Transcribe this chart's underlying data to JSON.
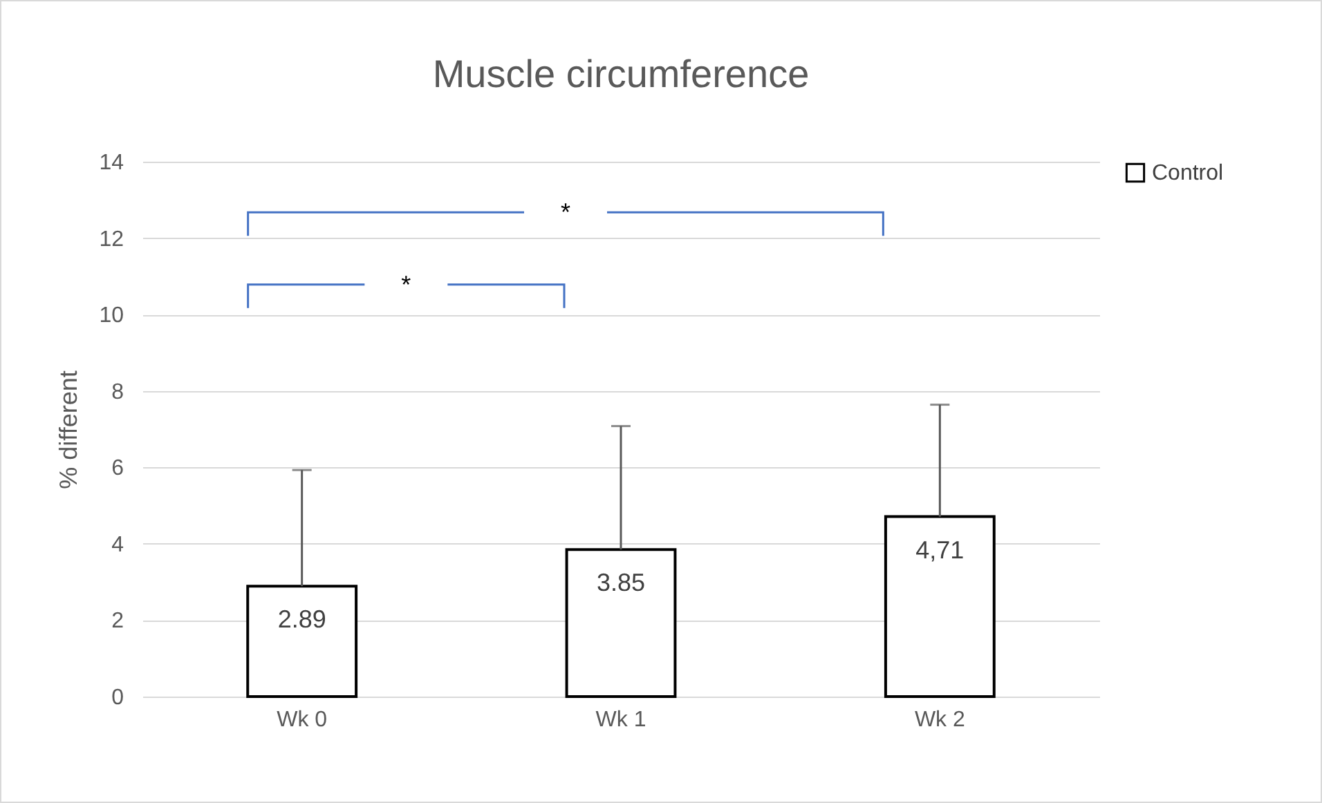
{
  "chart_data": {
    "type": "bar",
    "title": "Muscle circumference",
    "ylabel": "% different",
    "categories": [
      "Wk 0",
      "Wk 1",
      "Wk 2"
    ],
    "series": [
      {
        "name": "Control",
        "color": "#ffffff",
        "values": [
          2.89,
          3.85,
          4.71
        ],
        "errors": [
          [
            2.89,
            5.93
          ],
          [
            3.85,
            7.08
          ],
          [
            4.71,
            7.64
          ]
        ],
        "value_labels": [
          "2.89",
          "3.85",
          "4,71"
        ]
      }
    ],
    "ylim": [
      0,
      14
    ],
    "yticks": [
      0,
      2,
      4,
      6,
      8,
      10,
      12,
      14
    ],
    "grid": "y",
    "legend": "right",
    "annotations": [
      "*",
      "*"
    ]
  }
}
